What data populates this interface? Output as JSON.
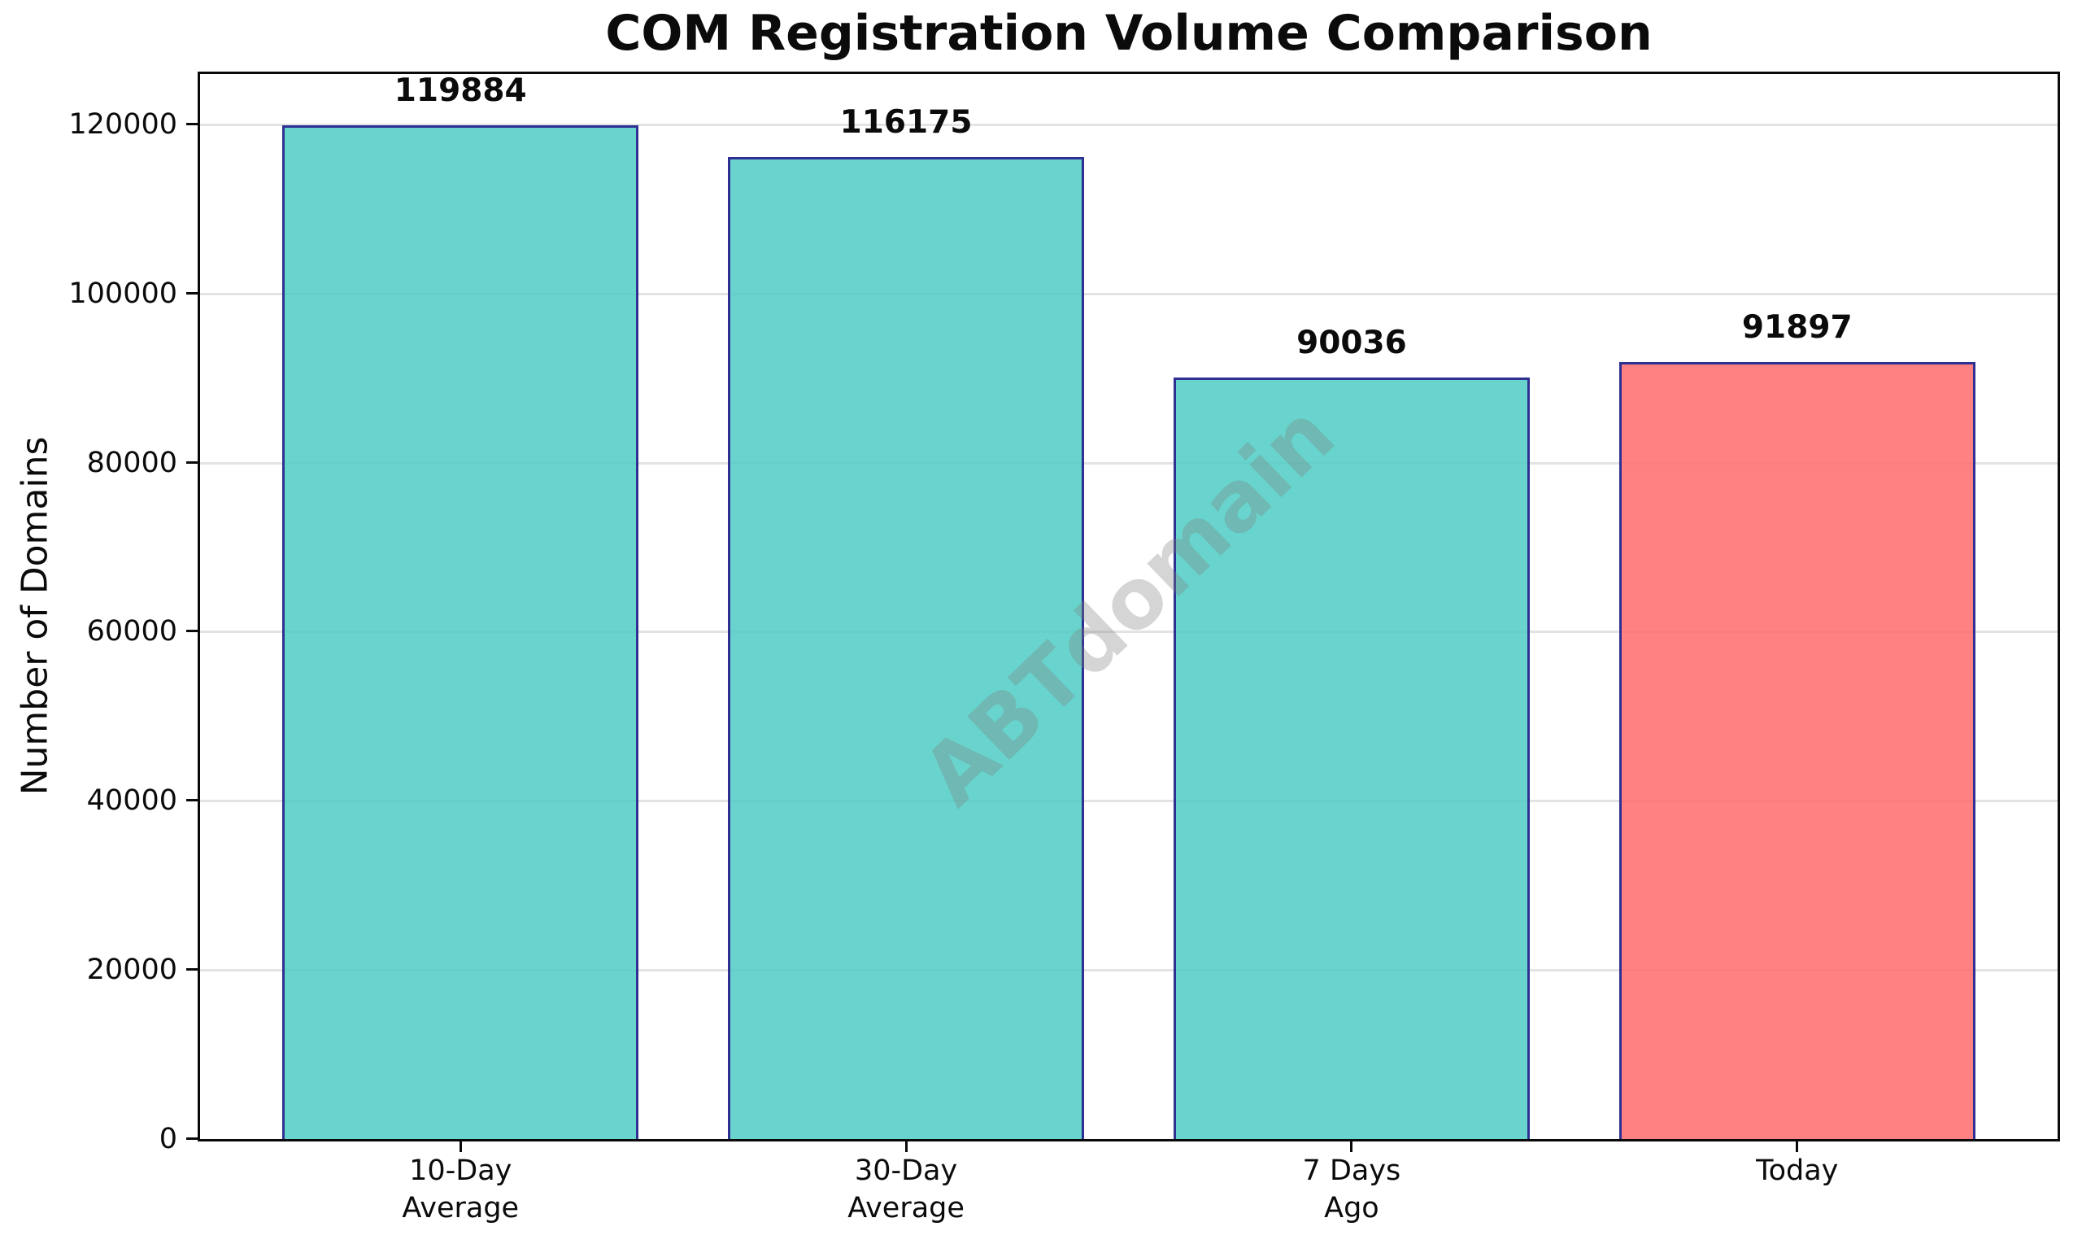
{
  "title": "COM Registration Volume Comparison",
  "watermark": {
    "text": "ABTdomain",
    "color": "rgba(127,127,127,0.33)",
    "rotation_deg": -44
  },
  "chart_data": {
    "type": "bar",
    "title": "COM Registration Volume Comparison",
    "categories": [
      "10-Day\nAverage",
      "30-Day\nAverage",
      "7 Days\nAgo",
      "Today"
    ],
    "values": [
      119884,
      116175,
      90036,
      91897
    ],
    "bar_value_labels": [
      "119884",
      "116175",
      "90036",
      "91897"
    ],
    "xlabel": "",
    "ylabel": "Number of Domains",
    "ylim": [
      0,
      126250
    ],
    "yticks": [
      0,
      20000,
      40000,
      60000,
      80000,
      100000,
      120000
    ],
    "ytick_labels": [
      "0",
      "20000",
      "40000",
      "60000",
      "80000",
      "100000",
      "120000"
    ],
    "xlim": [
      -0.59,
      3.59
    ],
    "x_positions": [
      0,
      1,
      2,
      3
    ],
    "bar_width": 0.8,
    "grid": "horizontal-only",
    "legend": "none",
    "colors": {
      "bar_fill": [
        "#4ECDC4",
        "#4ECDC4",
        "#4ECDC4",
        "#FF6B6B"
      ],
      "bar_fill_alpha": 0.85,
      "bar_edge": "#2E3192",
      "grid": "#E3E3E3",
      "axis": "#0A0A0A",
      "text": "#0B0B0B"
    }
  }
}
